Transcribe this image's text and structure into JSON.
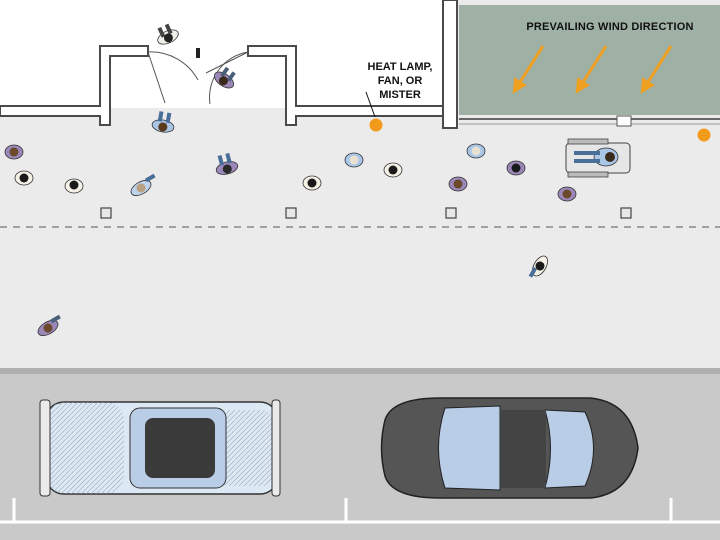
{
  "labels": {
    "heat_lamp_line1": "HEAT LAMP,",
    "heat_lamp_line2": "FAN, OR",
    "heat_lamp_line3": "MISTER",
    "wind_direction": "PREVAILING WIND DIRECTION"
  },
  "colors": {
    "sidewalk": "#ebebeb",
    "building_wall": "#ffffff",
    "wall_outline": "#4a4a4a",
    "patio_fill": "#9fb1a5",
    "wind_arrow": "#f0a020",
    "heater_marker": "#f29a1c",
    "road": "#c9c9c9",
    "curb": "#b0b0b0",
    "lane_stripe": "#ffffff",
    "car_light": "#dce8f4",
    "car_dark": "#555555"
  },
  "icons": {
    "heater_marker": "orange-circle-icon",
    "wind_arrow": "arrow-down-left-icon",
    "pedestrian": "person-topview-icon",
    "wheelchair": "wheelchair-topview-icon",
    "bollard": "square-bollard-icon",
    "vehicle": "car-topview-icon"
  }
}
